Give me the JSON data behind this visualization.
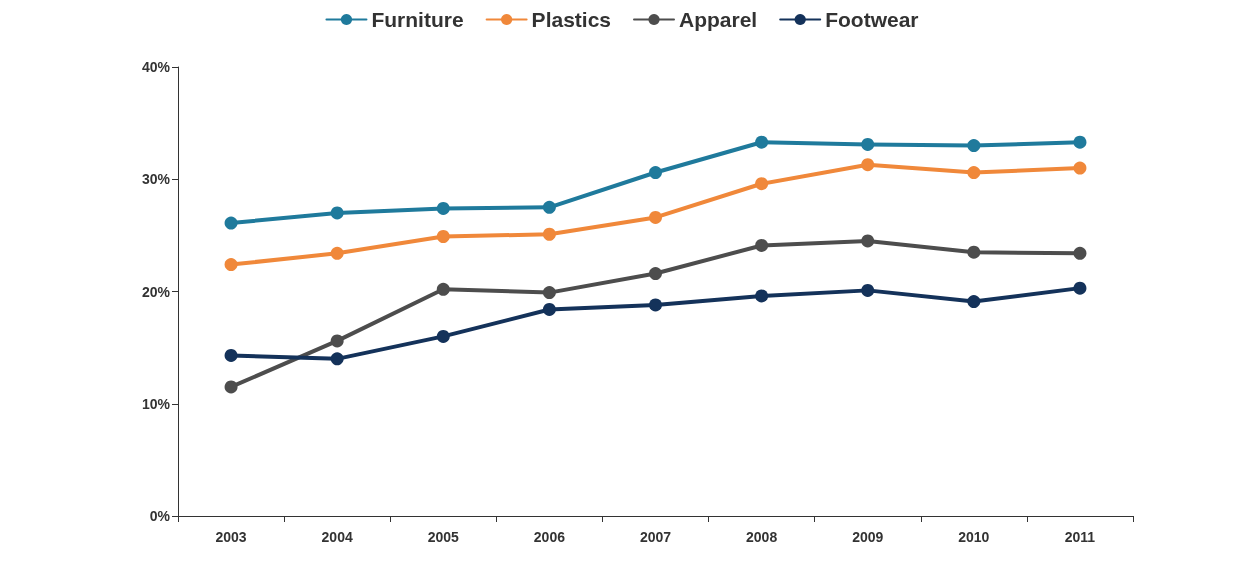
{
  "chart_data": {
    "type": "line",
    "categories": [
      "2003",
      "2004",
      "2005",
      "2006",
      "2007",
      "2008",
      "2009",
      "2010",
      "2011"
    ],
    "series": [
      {
        "name": "Furniture",
        "color": "#1f7a9c",
        "values": [
          26.1,
          27.0,
          27.4,
          27.5,
          30.6,
          33.3,
          33.1,
          33.0,
          33.3
        ]
      },
      {
        "name": "Plastics",
        "color": "#f0883a",
        "values": [
          22.4,
          23.4,
          24.9,
          25.1,
          26.6,
          29.6,
          31.3,
          30.6,
          31.0
        ]
      },
      {
        "name": "Apparel",
        "color": "#4d4d4d",
        "values": [
          11.5,
          15.6,
          20.2,
          19.9,
          21.6,
          24.1,
          24.5,
          23.5,
          23.4
        ]
      },
      {
        "name": "Footwear",
        "color": "#14325a",
        "values": [
          14.3,
          14.0,
          16.0,
          18.4,
          18.8,
          19.6,
          20.1,
          19.1,
          20.3
        ]
      }
    ],
    "ylim": [
      0,
      40
    ],
    "yticks": [
      {
        "value": 0,
        "label": "0%"
      },
      {
        "value": 10,
        "label": "10%"
      },
      {
        "value": 20,
        "label": "20%"
      },
      {
        "value": 30,
        "label": "30%"
      },
      {
        "value": 40,
        "label": "40%"
      }
    ],
    "grid": false,
    "legend": "top",
    "marker": "circle",
    "line_style": "solid"
  }
}
